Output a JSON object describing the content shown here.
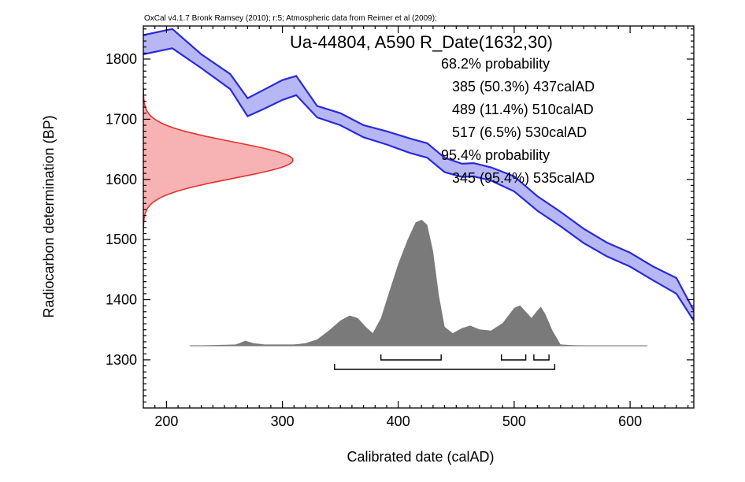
{
  "chart_data": {
    "type": "area",
    "credit": "OxCal v4.1.7 Bronk Ramsey (2010); r:5; Atmospheric data from Reimer et al (2009);",
    "title": "Ua-44804, A590 R_Date(1632,30)",
    "xlabel": "Calibrated date (calAD)",
    "ylabel": "Radiocarbon determination (BP)",
    "xlim": [
      180,
      655
    ],
    "ylim": [
      1220,
      1855
    ],
    "x_ticks": [
      200,
      300,
      400,
      500,
      600
    ],
    "y_ticks": [
      1300,
      1400,
      1500,
      1600,
      1700,
      1800
    ],
    "probability_text": [
      "68.2% probability",
      "385 (50.3%) 437calAD",
      "489 (11.4%) 510calAD",
      "517 (6.5%) 530calAD",
      "95.4% probability",
      "345 (95.4%) 535calAD"
    ],
    "radiocarbon_date": {
      "mean": 1632,
      "sigma": 30
    },
    "calibration_curve": {
      "x": [
        180,
        205,
        230,
        255,
        270,
        285,
        300,
        312,
        330,
        350,
        370,
        390,
        410,
        425,
        440,
        455,
        465,
        480,
        500,
        520,
        540,
        560,
        580,
        600,
        620,
        640,
        655
      ],
      "upper": [
        1840,
        1850,
        1808,
        1775,
        1735,
        1750,
        1765,
        1772,
        1722,
        1710,
        1690,
        1680,
        1668,
        1660,
        1636,
        1626,
        1627,
        1620,
        1605,
        1572,
        1546,
        1518,
        1495,
        1478,
        1455,
        1436,
        1382
      ],
      "lower": [
        1808,
        1818,
        1785,
        1750,
        1705,
        1718,
        1732,
        1740,
        1703,
        1690,
        1670,
        1658,
        1644,
        1636,
        1612,
        1604,
        1605,
        1598,
        1580,
        1548,
        1522,
        1494,
        1472,
        1455,
        1432,
        1410,
        1365
      ],
      "color": "#2a2ad8",
      "fill": "#b7b7f6"
    },
    "calibrated_distribution": {
      "x": [
        220,
        260,
        268,
        275,
        285,
        300,
        310,
        320,
        330,
        340,
        350,
        358,
        365,
        372,
        378,
        385,
        393,
        400,
        408,
        415,
        420,
        425,
        430,
        435,
        440,
        447,
        455,
        462,
        470,
        480,
        490,
        500,
        505,
        510,
        515,
        520,
        523,
        527,
        533,
        540,
        560,
        615
      ],
      "density": [
        0,
        0.01,
        0.04,
        0.02,
        0.01,
        0.01,
        0.01,
        0.02,
        0.05,
        0.12,
        0.2,
        0.24,
        0.22,
        0.15,
        0.1,
        0.22,
        0.45,
        0.65,
        0.84,
        0.98,
        1.0,
        0.96,
        0.75,
        0.4,
        0.15,
        0.1,
        0.14,
        0.16,
        0.13,
        0.12,
        0.18,
        0.3,
        0.32,
        0.27,
        0.22,
        0.28,
        0.31,
        0.25,
        0.12,
        0.01,
        0,
        0
      ],
      "color": "#7a7a7a"
    },
    "probability_ranges_68": [
      [
        385,
        437
      ],
      [
        489,
        510
      ],
      [
        517,
        530
      ]
    ],
    "probability_ranges_95": [
      [
        345,
        535
      ]
    ],
    "colors": {
      "curve_line": "#2a2ad8",
      "curve_fill": "#b7b7f6",
      "measurement_line": "#e53030",
      "measurement_fill": "#f7b3b3",
      "posterior_fill": "#7a7a7a"
    }
  }
}
